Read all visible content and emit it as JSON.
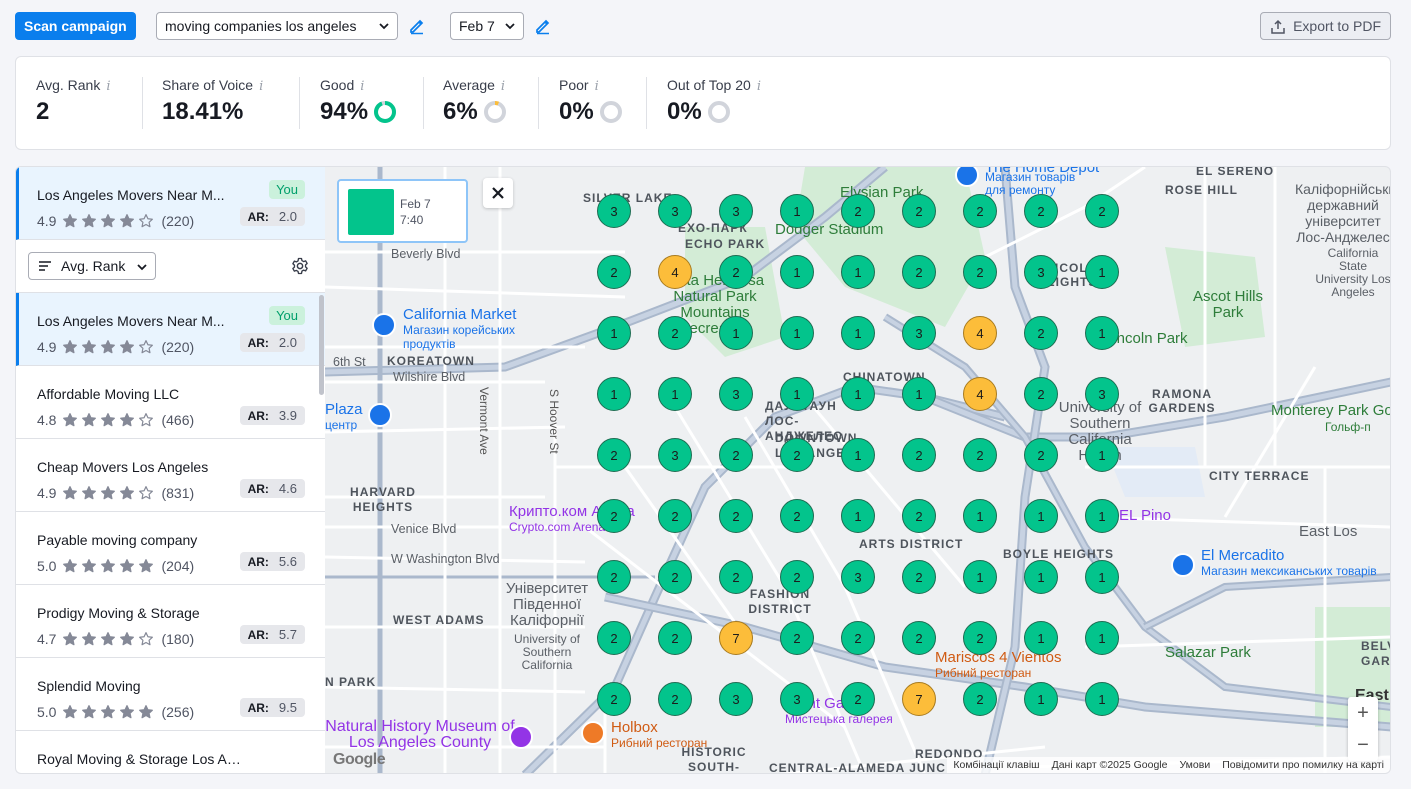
{
  "toolbar": {
    "scan_label": "Scan campaign",
    "keyword": "moving companies los angeles",
    "date": "Feb 7",
    "export_label": "Export to PDF"
  },
  "stats": [
    {
      "label": "Avg. Rank",
      "value": "2",
      "ring": null
    },
    {
      "label": "Share of Voice",
      "value": "18.41%",
      "ring": null
    },
    {
      "label": "Good",
      "value": "94%",
      "ring": 0.94,
      "ring_color": "#03c48c"
    },
    {
      "label": "Average",
      "value": "6%",
      "ring": 0.06,
      "ring_color": "#fcbd3a"
    },
    {
      "label": "Poor",
      "value": "0%",
      "ring": 0,
      "ring_color": "#ff4953"
    },
    {
      "label": "Out of Top 20",
      "value": "0%",
      "ring": 0,
      "ring_color": "#6c6e79"
    }
  ],
  "pinned": {
    "name": "Los Angeles Movers Near M...",
    "rating": "4.9",
    "stars": 4,
    "reviews": "(220)",
    "ar_label": "AR:",
    "ar": "2.0",
    "you": "You"
  },
  "sort": {
    "label": "Avg. Rank"
  },
  "competitors": [
    {
      "name": "Los Angeles Movers Near M...",
      "rating": "4.9",
      "stars": 4,
      "reviews": "(220)",
      "ar": "2.0",
      "you": "You"
    },
    {
      "name": "Affordable Moving LLC",
      "rating": "4.8",
      "stars": 4,
      "reviews": "(466)",
      "ar": "3.9"
    },
    {
      "name": "Cheap Movers Los Angeles",
      "rating": "4.9",
      "stars": 4,
      "reviews": "(831)",
      "ar": "4.6"
    },
    {
      "name": "Payable moving company",
      "rating": "5.0",
      "stars": 5,
      "reviews": "(204)",
      "ar": "5.6"
    },
    {
      "name": "Prodigy Moving & Storage",
      "rating": "4.7",
      "stars": 4,
      "reviews": "(180)",
      "ar": "5.7"
    },
    {
      "name": "Splendid Moving",
      "rating": "5.0",
      "stars": 5,
      "reviews": "(256)",
      "ar": "9.5"
    },
    {
      "name": "Royal Moving & Storage Los Angele...",
      "rating": "",
      "stars": 0,
      "reviews": "",
      "ar": ""
    }
  ],
  "ar_label": "AR:",
  "snapshot": {
    "date": "Feb 7",
    "time": "7:40"
  },
  "grid": [
    [
      3,
      3,
      3,
      1,
      2,
      2,
      2,
      2,
      2
    ],
    [
      2,
      4,
      2,
      1,
      1,
      2,
      2,
      3,
      1
    ],
    [
      1,
      2,
      1,
      1,
      1,
      3,
      4,
      2,
      1
    ],
    [
      1,
      1,
      3,
      1,
      1,
      1,
      4,
      2,
      3
    ],
    [
      2,
      3,
      2,
      2,
      1,
      2,
      2,
      2,
      1
    ],
    [
      2,
      2,
      2,
      2,
      1,
      2,
      1,
      1,
      1
    ],
    [
      2,
      2,
      2,
      2,
      3,
      2,
      1,
      1,
      1
    ],
    [
      2,
      2,
      7,
      2,
      2,
      2,
      2,
      1,
      1
    ],
    [
      2,
      2,
      3,
      3,
      2,
      7,
      2,
      1,
      1
    ]
  ],
  "colors": {
    "good": "#03c48c",
    "average": "#fcbd3a",
    "accent": "#0a7eed"
  },
  "map": {
    "labels": {
      "silver_lake": "SILVER LAKE",
      "echo_park": "ЕХО-ПАРК",
      "echo_park2": "ECHO PARK",
      "elysian": "Elysian Park",
      "dodger": "Dodger Stadium",
      "home_depot": "The Home Depot",
      "home_depot_sub1": "Магазин товарів",
      "home_depot_sub2": "для ремонту",
      "el_sereno": "EL SERENO",
      "rose_hill": "ROSE HILL",
      "cal_state": "Каліфорнійський державний університет Лос-Анджелес",
      "cal_state_en": "California State University Los Angeles",
      "beverly": "Beverly Blvd",
      "cal_market": "California Market",
      "cal_market_sub1": "Магазин корейських",
      "cal_market_sub2": "продуктів",
      "koreatown": "KOREATOWN",
      "wilshire": "Wilshire Blvd",
      "sixth": "6th St",
      "plaza": "Plaza",
      "plaza_sub": "центр",
      "vista": "Vista Hermosa Natural Park Mountains Recreation",
      "chinatown": "CHINATOWN",
      "dtla": "ДАУНТАУН ЛОС-АНДЖЕЛЕС",
      "dtla_en": "DOWNTOWN LOS ANGELES",
      "lincoln": "Lincoln Park",
      "lincoln_h": "LINCOLN HEIGHTS",
      "ascot": "Ascot Hills Park",
      "ramona": "RAMONA GARDENS",
      "usc_east": "University of Southern California Health",
      "monterey": "Monterey Park Golf",
      "monterey_sub": "Гольф-п",
      "harvard": "HARVARD HEIGHTS",
      "venice": "Venice Blvd",
      "washington": "W Washington Blvd",
      "crypto": "Крипто.ком Арена",
      "crypto_en": "Crypto.com Arena",
      "arts": "ARTS DISTRICT",
      "fashion": "FASHION DISTRICT",
      "boyle": "BOYLE HEIGHTS",
      "el_pino": "EL Pino",
      "city_terrace": "CITY TERRACE",
      "east_la": "East Los",
      "el_mercadito": "El Mercadito",
      "el_mercadito_sub": "Магазин мексиканських товарів",
      "west_adams": "WEST ADAMS",
      "usc": "Університет Південної Каліфорнії",
      "usc_en": "University of Southern California",
      "mariscos": "Mariscos 4 Vientos",
      "mariscos_sub": "Рибний ресторан",
      "salazar": "Salazar Park",
      "nhm": "Natural History Museum of Los Angeles County",
      "holbox": "Holbox",
      "holbox_sub": "Рибний ресторан",
      "gallery": "Night Gallery",
      "gallery_sub": "Мистецька галерея",
      "historic": "HISTORIC SOUTH-CENTRAL",
      "redondo": "REDONDO",
      "central_alameda": "CENTRAL-ALAMEDA JUNC",
      "park": "N PARK",
      "vermont": "Vermont Ave",
      "hoover": "S Hoover St",
      "belv": "BELV GAR",
      "east_lo": "East Lo"
    },
    "attribution": [
      "Комбінації клавіш",
      "Дані карт ©2025 Google",
      "Умови",
      "Повідомити про помилку на карті"
    ],
    "google": "Google"
  }
}
